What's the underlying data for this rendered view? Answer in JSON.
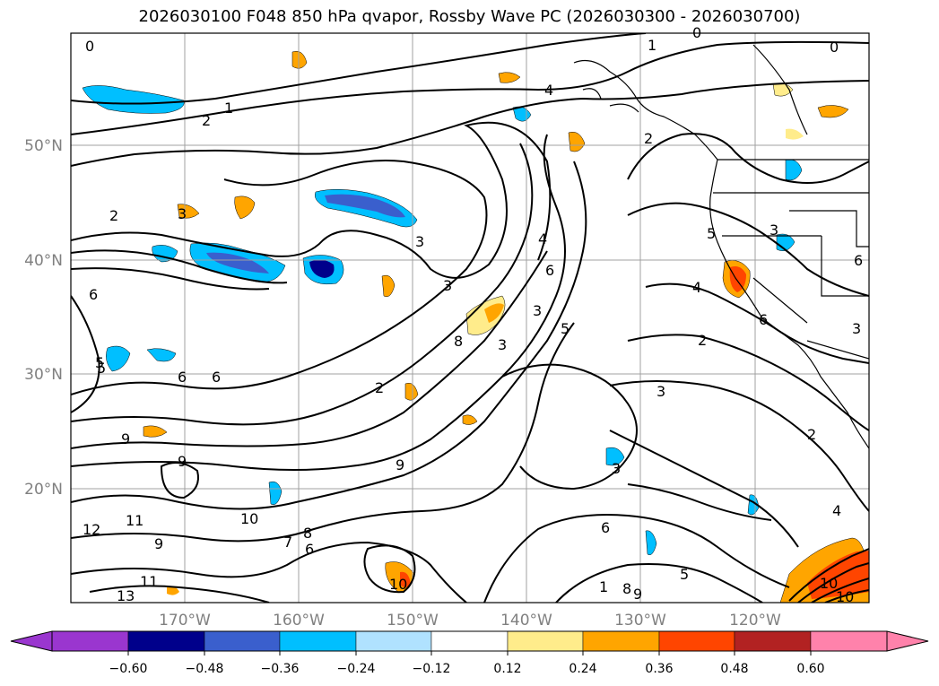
{
  "title": "2026030100 F048 850 hPa qvapor, Rossby Wave PC (2026030300 - 2026030700)",
  "lat_labels": [
    "50°N",
    "40°N",
    "30°N",
    "20°N"
  ],
  "lon_labels": [
    "170°W",
    "160°W",
    "150°W",
    "140°W",
    "130°W",
    "120°W"
  ],
  "colorbar": {
    "ticks": [
      "−0.60",
      "−0.48",
      "−0.36",
      "−0.24",
      "−0.12",
      "0.12",
      "0.24",
      "0.36",
      "0.48",
      "0.60"
    ],
    "colors": [
      "#9a36cf",
      "#00008b",
      "#3a5fcd",
      "#00bfff",
      "#b0e2ff",
      "#ffffff",
      "#ffec8b",
      "#ffa500",
      "#ff4500",
      "#b22222",
      "#ff82ab"
    ],
    "extend": "both"
  },
  "contour_labels": [
    "0",
    "1",
    "0",
    "0",
    "4",
    "2",
    "1",
    "2",
    "2",
    "3",
    "3",
    "5",
    "4",
    "6",
    "3",
    "6",
    "3",
    "5",
    "2",
    "3",
    "8",
    "3",
    "5",
    "4",
    "6",
    "3",
    "9",
    "9",
    "9",
    "11",
    "10",
    "8",
    "7",
    "6",
    "9",
    "10",
    "11",
    "13",
    "12",
    "5",
    "6",
    "6",
    "6",
    "2",
    "6",
    "9",
    "1",
    "8",
    "10",
    "10",
    "5",
    "3",
    "2",
    "3",
    "4"
  ],
  "grid": true,
  "coastlines": true
}
